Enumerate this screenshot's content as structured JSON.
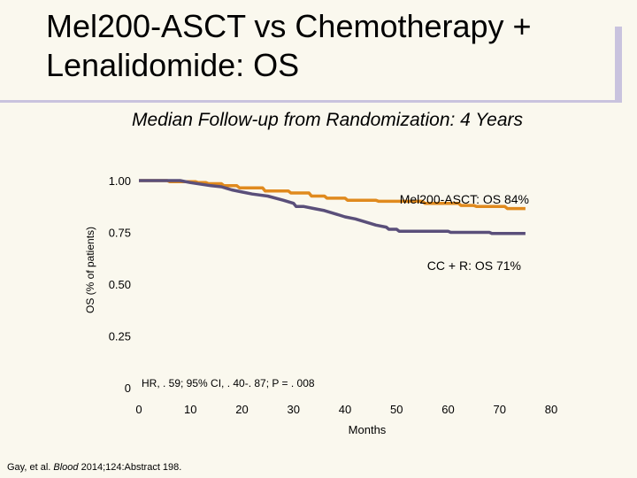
{
  "slide": {
    "title_line1": "Mel200-ASCT vs Chemotherapy +",
    "title_line2": "Lenalidomide: OS",
    "subtitle": "Median Follow-up from Randomization: 4 Years",
    "citation_authors": "Gay, et al.",
    "citation_journal": "Blood",
    "citation_rest": "2014;124:Abstract 198."
  },
  "colors": {
    "background": "#faf8ee",
    "accent": "#c9c3de",
    "mel200": "#e08a1e",
    "ccr": "#5a4f7a"
  },
  "chart_data": {
    "type": "line",
    "title": "",
    "xlabel": "Months",
    "ylabel": "OS (% of patients)",
    "xlim": [
      0,
      80
    ],
    "ylim": [
      0,
      1.0
    ],
    "x_ticks": [
      "0",
      "10",
      "20",
      "30",
      "40",
      "50",
      "60",
      "70",
      "80"
    ],
    "y_ticks": [
      {
        "value": 1.0,
        "label": "1.00"
      },
      {
        "value": 0.75,
        "label": "0.75"
      },
      {
        "value": 0.5,
        "label": "0.50"
      },
      {
        "value": 0.25,
        "label": "0.25"
      },
      {
        "value": 0,
        "label": "0"
      }
    ],
    "series": [
      {
        "name": "Mel200-ASCT",
        "label": "Mel200-ASCT: OS 84%",
        "color": "#e08a1e",
        "points": [
          [
            0,
            1.0
          ],
          [
            5.5,
            1.0
          ],
          [
            6,
            0.995
          ],
          [
            11,
            0.995
          ],
          [
            11.5,
            0.99
          ],
          [
            13,
            0.99
          ],
          [
            13.5,
            0.985
          ],
          [
            16,
            0.985
          ],
          [
            16.5,
            0.975
          ],
          [
            19,
            0.975
          ],
          [
            19.5,
            0.965
          ],
          [
            24,
            0.965
          ],
          [
            24.5,
            0.95
          ],
          [
            29,
            0.95
          ],
          [
            29.5,
            0.94
          ],
          [
            33,
            0.94
          ],
          [
            33.5,
            0.925
          ],
          [
            36,
            0.925
          ],
          [
            36.5,
            0.915
          ],
          [
            40,
            0.915
          ],
          [
            40.5,
            0.905
          ],
          [
            46,
            0.905
          ],
          [
            46.5,
            0.9
          ],
          [
            55,
            0.9
          ],
          [
            55.5,
            0.89
          ],
          [
            62,
            0.89
          ],
          [
            62.5,
            0.88
          ],
          [
            65,
            0.88
          ],
          [
            65.5,
            0.875
          ],
          [
            71,
            0.875
          ],
          [
            71.5,
            0.865
          ],
          [
            75,
            0.865
          ]
        ]
      },
      {
        "name": "CC + R",
        "label": "CC + R: OS 71%",
        "color": "#5a4f7a",
        "points": [
          [
            0,
            1.0
          ],
          [
            8,
            1.0
          ],
          [
            10,
            0.99
          ],
          [
            14,
            0.975
          ],
          [
            16,
            0.97
          ],
          [
            18,
            0.955
          ],
          [
            20,
            0.945
          ],
          [
            22,
            0.935
          ],
          [
            25,
            0.925
          ],
          [
            28,
            0.905
          ],
          [
            30,
            0.89
          ],
          [
            30.5,
            0.875
          ],
          [
            32,
            0.875
          ],
          [
            34,
            0.865
          ],
          [
            36,
            0.855
          ],
          [
            38,
            0.84
          ],
          [
            40,
            0.825
          ],
          [
            42,
            0.815
          ],
          [
            44,
            0.8
          ],
          [
            46,
            0.785
          ],
          [
            48,
            0.775
          ],
          [
            48.5,
            0.765
          ],
          [
            50,
            0.765
          ],
          [
            50.5,
            0.755
          ],
          [
            60,
            0.755
          ],
          [
            60.5,
            0.75
          ],
          [
            68,
            0.75
          ],
          [
            68.5,
            0.745
          ],
          [
            75,
            0.745
          ]
        ]
      }
    ],
    "annotations": {
      "stats": "HR, . 59; 95% CI, . 40-. 87; P = . 008"
    }
  }
}
